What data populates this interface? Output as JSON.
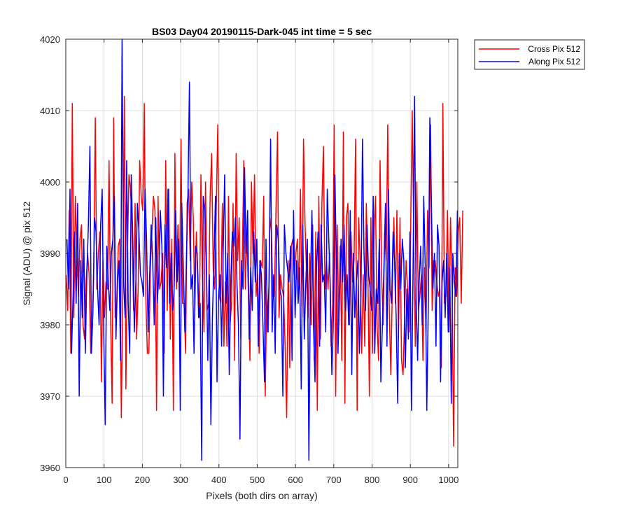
{
  "chart_data": {
    "type": "line",
    "title": "BS03 Day04 20190115-Dark-045 int time = 5 sec",
    "xlabel": "Pixels (both dirs on array)",
    "ylabel": "Signal (ADU) @ pix 512",
    "xlim": [
      0,
      1024
    ],
    "ylim": [
      3960,
      4020
    ],
    "xticks": [
      0,
      100,
      200,
      300,
      400,
      500,
      600,
      700,
      800,
      900,
      1000
    ],
    "yticks": [
      3960,
      3970,
      3980,
      3990,
      4000,
      4010,
      4020
    ],
    "grid": true,
    "legend_position": "outside top-right",
    "series": [
      {
        "name": "Cross Pix 512",
        "color": "#ff0000",
        "x_start": 1,
        "x_step": 4,
        "values": [
          3987,
          3982,
          3996,
          3976,
          4011,
          3981,
          3998,
          3990,
          3984,
          3992,
          3994,
          3980,
          3978,
          3986,
          3990,
          3987,
          3976,
          3979,
          3988,
          4009,
          3985,
          3990,
          3993,
          3972,
          3989,
          3981,
          3986,
          3985,
          4003,
          3981,
          3969,
          4009,
          3981,
          3983,
          3991,
          3992,
          3967,
          3985,
          4012,
          3971,
          3990,
          4001,
          3999,
          3994,
          3982,
          3997,
          3978,
          3985,
          4003,
          3998,
          3996,
          4011,
          3984,
          3976,
          3976,
          3988,
          3993,
          3998,
          3996,
          3968,
          3998,
          3985,
          3986,
          3990,
          3976,
          4003,
          3982,
          3999,
          3978,
          3992,
          3968,
          4004,
          3985,
          3994,
          3984,
          4006,
          3983,
          3983,
          3976,
          3997,
          3999,
          3989,
          4000,
          3995,
          3982,
          3993,
          3987,
          3981,
          4001,
          3987,
          3979,
          4000,
          3982,
          3983,
          3998,
          4004,
          3988,
          3985,
          3996,
          4008,
          3984,
          3983,
          3997,
          3977,
          3986,
          3977,
          3998,
          3980,
          3983,
          3997,
          3975,
          4004,
          3989,
          3995,
          3978,
          3989,
          4003,
          3985,
          3993,
          3984,
          3975,
          4000,
          3990,
          4001,
          3984,
          3987,
          3976,
          3989,
          3988,
          3998,
          3970,
          3985,
          3979,
          3995,
          3993,
          3984,
          3984,
          3996,
          4007,
          3981,
          3987,
          3985,
          3984,
          3977,
          3967,
          3989,
          3974,
          3991,
          3992,
          3987,
          3990,
          3992,
          3985,
          3999,
          3981,
          4006,
          3994,
          3987,
          3981,
          3990,
          3980,
          3994,
          3975,
          3993,
          3968,
          3998,
          3978,
          3997,
          4005,
          3985,
          3989,
          3985,
          3990,
          3977,
          3983,
          4008,
          3970,
          3994,
          3980,
          3991,
          3975,
          4007,
          3969,
          3995,
          3997,
          3980,
          3993,
          3986,
          3989,
          4006,
          3968,
          3995,
          3989,
          3976,
          3987,
          3977,
          3997,
          3988,
          3970,
          3995,
          3976,
          3993,
          3998,
          3980,
          3975,
          4003,
          3987,
          3980,
          3993,
          3989,
          4008,
          3982,
          3973,
          3985,
          3995,
          3983,
          3996,
          3978,
          3995,
          3975,
          3973,
          3981,
          3989,
          3985,
          3979,
          3994,
          4010,
          3992,
          3977,
          4000,
          3982,
          3984,
          3987,
          3975,
          3988,
          3979,
          3996,
          3988,
          4008,
          3982,
          3989,
          3989,
          3986,
          3984,
          3985,
          3974,
          4011,
          3983,
          3984,
          3996,
          3979,
          3995,
          3985,
          3963,
          3988,
          3984,
          3993,
          3995,
          3983,
          3996
        ]
      },
      {
        "name": "Along Pix 512",
        "color": "#0000ff",
        "x_start": 3,
        "x_step": 4,
        "values": [
          3992,
          3985,
          3999,
          3976,
          3984,
          3993,
          3983,
          3997,
          3970,
          3989,
          3981,
          3992,
          3976,
          3987,
          3994,
          4005,
          3976,
          3982,
          3995,
          3993,
          3985,
          3980,
          3994,
          3999,
          3979,
          3966,
          3991,
          3986,
          3982,
          3990,
          3992,
          3998,
          3978,
          3986,
          3989,
          3975,
          4020,
          3986,
          3981,
          4003,
          3983,
          3976,
          4001,
          3992,
          3979,
          3986,
          3997,
          3993,
          3987,
          3986,
          3984,
          3999,
          3992,
          3979,
          3987,
          3994,
          3989,
          3980,
          3995,
          3983,
          3987,
          3996,
          3991,
          3970,
          3994,
          3988,
          3999,
          3983,
          3990,
          3982,
          3985,
          3996,
          3986,
          3992,
          3968,
          3997,
          3988,
          3979,
          3989,
          3998,
          4014,
          3985,
          3987,
          3976,
          3991,
          3990,
          3981,
          3983,
          3961,
          3998,
          3996,
          3989,
          3975,
          3987,
          3966,
          3981,
          3989,
          3998,
          3972,
          3984,
          3987,
          3977,
          3990,
          4001,
          3983,
          3990,
          3973,
          3986,
          3993,
          3991,
          3995,
          3986,
          3980,
          3964,
          3989,
          3985,
          4002,
          3990,
          3996,
          3978,
          3988,
          3982,
          3993,
          3986,
          3992,
          3977,
          3989,
          3987,
          3980,
          3972,
          3992,
          3979,
          3986,
          4006,
          3979,
          3987,
          3976,
          3994,
          3992,
          3985,
          3984,
          3970,
          3994,
          3990,
          3988,
          3986,
          3991,
          3975,
          3996,
          3981,
          3989,
          3983,
          3988,
          3971,
          3994,
          3978,
          3986,
          3992,
          3961,
          3986,
          3996,
          3980,
          3972,
          3988,
          3993,
          3977,
          3994,
          3986,
          3987,
          3979,
          3999,
          3992,
          3985,
          3973,
          3981,
          4001,
          3988,
          3976,
          3984,
          3992,
          3986,
          3994,
          3982,
          3987,
          3980,
          3996,
          3973,
          3990,
          3981,
          3986,
          3989,
          3976,
          3984,
          4006,
          3990,
          3982,
          3994,
          3987,
          3985,
          3982,
          3998,
          3976,
          3985,
          3983,
          3992,
          3972,
          3980,
          3988,
          3997,
          3977,
          3999,
          3985,
          3983,
          3993,
          3989,
          3981,
          3969,
          3990,
          3985,
          3992,
          3989,
          3974,
          3985,
          3978,
          3993,
          3968,
          3987,
          4012,
          3984,
          3975,
          3986,
          3991,
          3980,
          3998,
          3988,
          3968,
          3983,
          4009,
          3997,
          3985,
          3990,
          3977,
          3994,
          3991,
          3972,
          3986,
          3989,
          3981,
          3990,
          3979,
          3988,
          3969,
          3990,
          3986,
          3984,
          3996
        ]
      }
    ]
  }
}
